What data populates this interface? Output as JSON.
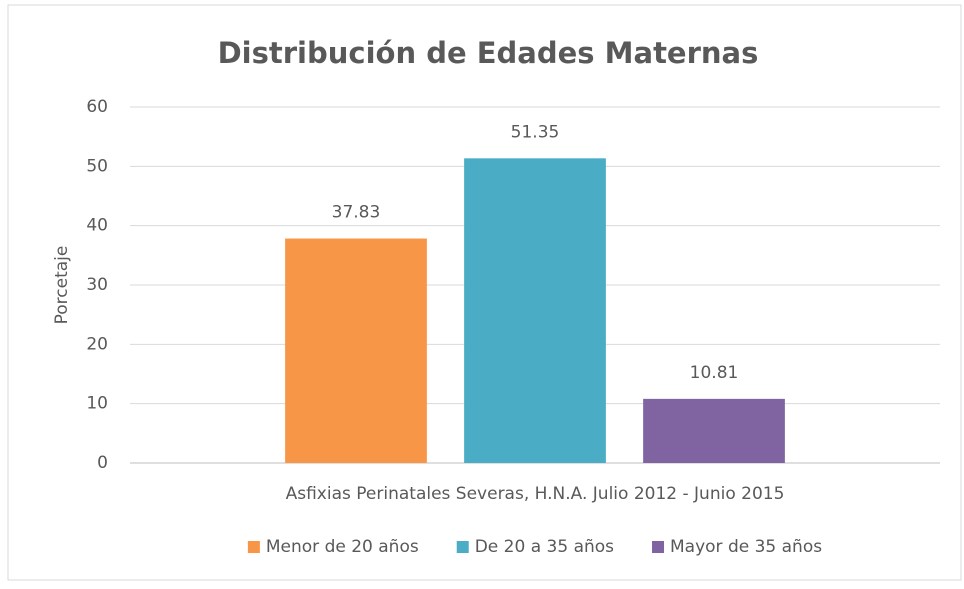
{
  "chart_data": {
    "type": "bar",
    "title": "Distribución de Edades Maternas",
    "y_label": "Porcetaje",
    "categories": [
      "Asfixias Perinatales Severas, H.N.A. Julio 2012 - Junio 2015"
    ],
    "series": [
      {
        "name": "Menor de 20 años",
        "color": "#f79646",
        "values": [
          37.83
        ]
      },
      {
        "name": "De 20 a 35 años",
        "color": "#4bacc6",
        "values": [
          51.35
        ]
      },
      {
        "name": "Mayor de 35 años",
        "color": "#8064a2",
        "values": [
          10.81
        ]
      }
    ],
    "ylim": [
      0,
      60
    ],
    "yticks": [
      0,
      10,
      20,
      30,
      40,
      50,
      60
    ],
    "grid": true,
    "legend": "bottom"
  }
}
